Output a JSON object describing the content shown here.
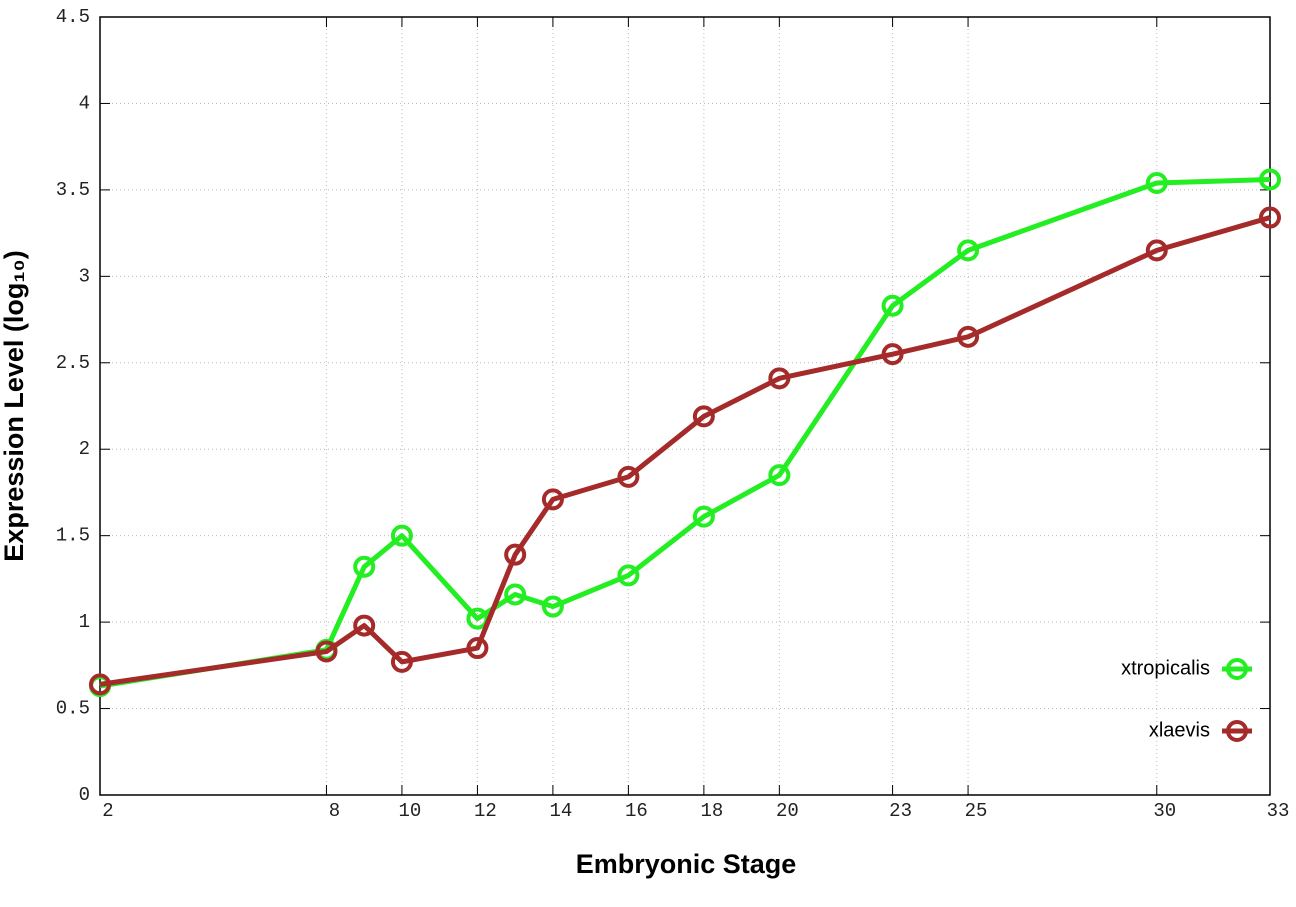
{
  "chart_data": {
    "type": "line",
    "xlabel": "Embryonic Stage",
    "ylabel": "Expression Level (log₁₀)",
    "x": [
      2,
      8,
      9,
      10,
      12,
      13,
      14,
      16,
      18,
      20,
      23,
      25,
      30,
      33
    ],
    "series": [
      {
        "name": "xtropicalis",
        "color": "#22ee22",
        "values": [
          0.63,
          0.84,
          1.32,
          1.5,
          1.02,
          1.16,
          1.09,
          1.27,
          1.61,
          1.85,
          2.83,
          3.15,
          3.54,
          3.56
        ]
      },
      {
        "name": "xlaevis",
        "color": "#a52a2a",
        "values": [
          0.64,
          0.83,
          0.98,
          0.77,
          0.85,
          1.39,
          1.71,
          1.84,
          2.19,
          2.41,
          2.55,
          2.65,
          3.15,
          3.34
        ]
      }
    ],
    "xlim": [
      2,
      33
    ],
    "xticks": [
      2,
      8,
      10,
      12,
      14,
      16,
      18,
      20,
      23,
      25,
      30,
      33
    ],
    "ylim": [
      0,
      4.5
    ],
    "yticks": [
      0,
      0.5,
      1,
      1.5,
      2,
      2.5,
      3,
      3.5,
      4,
      4.5
    ],
    "grid": true,
    "legend": "lower right"
  }
}
